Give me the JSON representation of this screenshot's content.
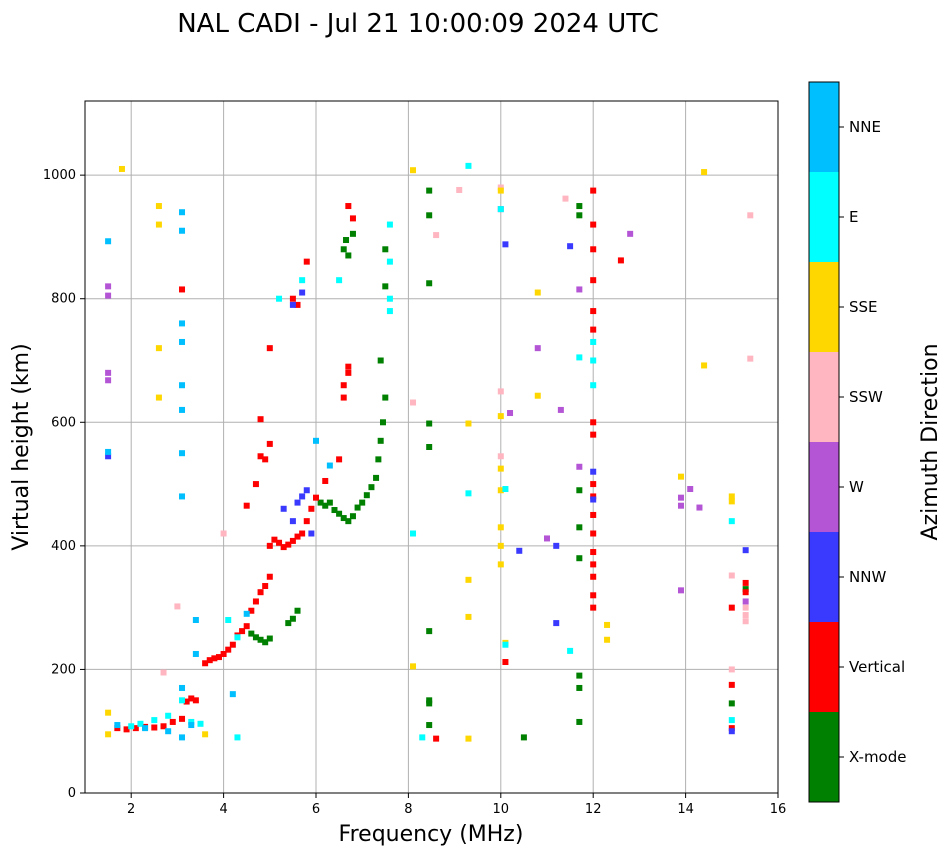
{
  "chart_data": {
    "type": "scatter",
    "title": "NAL CADI - Jul 21 10:00:09 2024 UTC",
    "xlabel": "Frequency (MHz)",
    "ylabel": "Virtual height (km)",
    "xlim": [
      1,
      16
    ],
    "ylim": [
      0,
      1120
    ],
    "xticks": [
      2,
      4,
      6,
      8,
      10,
      12,
      14,
      16
    ],
    "yticks": [
      0,
      200,
      400,
      600,
      800,
      1000
    ],
    "grid": true,
    "colorbar": {
      "title": "Azimuth Direction",
      "categories": [
        {
          "name": "X-mode",
          "color": "#008000"
        },
        {
          "name": "Vertical",
          "color": "#ff0000"
        },
        {
          "name": "NNW",
          "color": "#3a3aff"
        },
        {
          "name": "W",
          "color": "#b455d6"
        },
        {
          "name": "SSW",
          "color": "#ffb6c1"
        },
        {
          "name": "SSE",
          "color": "#ffd700"
        },
        {
          "name": "E",
          "color": "#00ffff"
        },
        {
          "name": "NNE",
          "color": "#00bfff"
        }
      ]
    },
    "series": [
      {
        "name": "X-mode",
        "points": [
          [
            4.6,
            258
          ],
          [
            4.7,
            252
          ],
          [
            4.8,
            248
          ],
          [
            4.9,
            244
          ],
          [
            5.0,
            250
          ],
          [
            5.4,
            275
          ],
          [
            5.5,
            282
          ],
          [
            5.6,
            295
          ],
          [
            6.1,
            470
          ],
          [
            6.2,
            465
          ],
          [
            6.3,
            470
          ],
          [
            6.4,
            458
          ],
          [
            6.5,
            452
          ],
          [
            6.6,
            445
          ],
          [
            6.7,
            440
          ],
          [
            6.8,
            448
          ],
          [
            6.9,
            462
          ],
          [
            7.0,
            470
          ],
          [
            7.1,
            482
          ],
          [
            7.2,
            495
          ],
          [
            7.3,
            510
          ],
          [
            7.35,
            540
          ],
          [
            7.4,
            570
          ],
          [
            7.45,
            600
          ],
          [
            7.5,
            640
          ],
          [
            7.4,
            700
          ],
          [
            7.5,
            820
          ],
          [
            7.5,
            880
          ],
          [
            6.6,
            880
          ],
          [
            6.65,
            895
          ],
          [
            6.7,
            870
          ],
          [
            6.8,
            905
          ],
          [
            8.45,
            975
          ],
          [
            8.45,
            935
          ],
          [
            8.45,
            825
          ],
          [
            8.45,
            560
          ],
          [
            8.45,
            598
          ],
          [
            8.45,
            262
          ],
          [
            8.45,
            150
          ],
          [
            8.45,
            145
          ],
          [
            8.45,
            110
          ],
          [
            10.5,
            90
          ],
          [
            11.7,
            950
          ],
          [
            11.7,
            935
          ],
          [
            11.7,
            490
          ],
          [
            11.7,
            430
          ],
          [
            11.7,
            380
          ],
          [
            11.7,
            190
          ],
          [
            11.7,
            170
          ],
          [
            11.7,
            115
          ],
          [
            15.0,
            145
          ],
          [
            15.3,
            330
          ]
        ]
      },
      {
        "name": "Vertical",
        "points": [
          [
            1.7,
            105
          ],
          [
            1.9,
            103
          ],
          [
            2.1,
            105
          ],
          [
            2.3,
            107
          ],
          [
            2.5,
            106
          ],
          [
            2.7,
            108
          ],
          [
            2.9,
            115
          ],
          [
            3.1,
            120
          ],
          [
            3.2,
            148
          ],
          [
            3.3,
            153
          ],
          [
            3.4,
            150
          ],
          [
            3.6,
            210
          ],
          [
            3.7,
            215
          ],
          [
            3.8,
            218
          ],
          [
            3.9,
            220
          ],
          [
            4.0,
            225
          ],
          [
            4.1,
            232
          ],
          [
            4.2,
            240
          ],
          [
            4.3,
            255
          ],
          [
            4.4,
            262
          ],
          [
            4.5,
            270
          ],
          [
            4.6,
            295
          ],
          [
            4.7,
            310
          ],
          [
            4.8,
            325
          ],
          [
            4.9,
            335
          ],
          [
            5.0,
            350
          ],
          [
            5.0,
            400
          ],
          [
            5.1,
            410
          ],
          [
            5.2,
            405
          ],
          [
            5.3,
            398
          ],
          [
            5.4,
            402
          ],
          [
            5.5,
            408
          ],
          [
            5.6,
            415
          ],
          [
            5.7,
            420
          ],
          [
            5.8,
            440
          ],
          [
            5.9,
            460
          ],
          [
            6.0,
            478
          ],
          [
            6.2,
            505
          ],
          [
            6.5,
            540
          ],
          [
            6.6,
            640
          ],
          [
            6.6,
            660
          ],
          [
            6.7,
            680
          ],
          [
            6.7,
            690
          ],
          [
            4.5,
            465
          ],
          [
            4.7,
            500
          ],
          [
            4.8,
            545
          ],
          [
            4.9,
            540
          ],
          [
            5.0,
            565
          ],
          [
            4.8,
            605
          ],
          [
            5.6,
            790
          ],
          [
            5.5,
            800
          ],
          [
            5.8,
            860
          ],
          [
            5.0,
            720
          ],
          [
            6.7,
            950
          ],
          [
            6.8,
            930
          ],
          [
            3.1,
            815
          ],
          [
            8.6,
            88
          ],
          [
            10.1,
            212
          ],
          [
            12.0,
            975
          ],
          [
            12.0,
            920
          ],
          [
            12.0,
            880
          ],
          [
            12.0,
            830
          ],
          [
            12.0,
            780
          ],
          [
            12.0,
            750
          ],
          [
            12.0,
            600
          ],
          [
            12.0,
            580
          ],
          [
            12.0,
            500
          ],
          [
            12.0,
            480
          ],
          [
            12.0,
            450
          ],
          [
            12.0,
            420
          ],
          [
            12.0,
            390
          ],
          [
            12.0,
            370
          ],
          [
            12.0,
            350
          ],
          [
            12.0,
            320
          ],
          [
            12.0,
            300
          ],
          [
            12.6,
            862
          ],
          [
            15.0,
            300
          ],
          [
            15.0,
            175
          ],
          [
            15.0,
            105
          ],
          [
            15.3,
            340
          ],
          [
            15.3,
            325
          ]
        ]
      },
      {
        "name": "NNW",
        "points": [
          [
            1.5,
            545
          ],
          [
            5.3,
            460
          ],
          [
            5.5,
            440
          ],
          [
            5.6,
            470
          ],
          [
            5.7,
            480
          ],
          [
            5.8,
            490
          ],
          [
            5.9,
            420
          ],
          [
            5.5,
            790
          ],
          [
            5.7,
            810
          ],
          [
            10.1,
            888
          ],
          [
            10.4,
            392
          ],
          [
            11.2,
            400
          ],
          [
            11.2,
            275
          ],
          [
            11.5,
            885
          ],
          [
            12.0,
            475
          ],
          [
            12.0,
            520
          ],
          [
            15.3,
            393
          ],
          [
            15.0,
            100
          ]
        ]
      },
      {
        "name": "W",
        "points": [
          [
            1.5,
            820
          ],
          [
            1.5,
            805
          ],
          [
            1.5,
            680
          ],
          [
            1.5,
            668
          ],
          [
            10.0,
            945
          ],
          [
            10.2,
            615
          ],
          [
            10.8,
            720
          ],
          [
            11.0,
            412
          ],
          [
            11.3,
            620
          ],
          [
            11.7,
            528
          ],
          [
            11.7,
            815
          ],
          [
            12.8,
            905
          ],
          [
            13.9,
            478
          ],
          [
            13.9,
            465
          ],
          [
            13.9,
            328
          ],
          [
            14.1,
            492
          ],
          [
            14.3,
            462
          ],
          [
            15.3,
            310
          ]
        ]
      },
      {
        "name": "SSW",
        "points": [
          [
            2.7,
            195
          ],
          [
            3.0,
            302
          ],
          [
            4.0,
            420
          ],
          [
            8.1,
            632
          ],
          [
            8.6,
            903
          ],
          [
            9.1,
            976
          ],
          [
            10.0,
            980
          ],
          [
            10.0,
            650
          ],
          [
            10.0,
            545
          ],
          [
            11.4,
            962
          ],
          [
            15.0,
            352
          ],
          [
            15.0,
            200
          ],
          [
            15.3,
            300
          ],
          [
            15.3,
            288
          ],
          [
            15.3,
            278
          ],
          [
            15.4,
            935
          ],
          [
            15.4,
            703
          ]
        ]
      },
      {
        "name": "SSE",
        "points": [
          [
            1.5,
            130
          ],
          [
            1.5,
            95
          ],
          [
            1.8,
            1010
          ],
          [
            2.6,
            950
          ],
          [
            2.6,
            920
          ],
          [
            2.6,
            720
          ],
          [
            2.6,
            640
          ],
          [
            3.6,
            95
          ],
          [
            8.1,
            205
          ],
          [
            8.1,
            1008
          ],
          [
            9.3,
            598
          ],
          [
            9.3,
            345
          ],
          [
            9.3,
            285
          ],
          [
            9.3,
            88
          ],
          [
            10.0,
            975
          ],
          [
            10.0,
            610
          ],
          [
            10.0,
            525
          ],
          [
            10.0,
            490
          ],
          [
            10.0,
            430
          ],
          [
            10.0,
            400
          ],
          [
            10.0,
            370
          ],
          [
            10.1,
            243
          ],
          [
            10.8,
            810
          ],
          [
            10.8,
            643
          ],
          [
            12.3,
            272
          ],
          [
            12.3,
            248
          ],
          [
            13.9,
            512
          ],
          [
            14.4,
            1005
          ],
          [
            14.4,
            692
          ],
          [
            15.0,
            480
          ],
          [
            15.0,
            472
          ]
        ]
      },
      {
        "name": "E",
        "points": [
          [
            2.0,
            108
          ],
          [
            2.2,
            112
          ],
          [
            2.5,
            118
          ],
          [
            2.8,
            125
          ],
          [
            3.1,
            150
          ],
          [
            3.3,
            115
          ],
          [
            3.5,
            112
          ],
          [
            4.1,
            280
          ],
          [
            4.3,
            252
          ],
          [
            4.3,
            90
          ],
          [
            5.2,
            800
          ],
          [
            5.7,
            830
          ],
          [
            6.5,
            830
          ],
          [
            7.6,
            920
          ],
          [
            7.6,
            860
          ],
          [
            7.6,
            800
          ],
          [
            7.6,
            780
          ],
          [
            8.1,
            420
          ],
          [
            8.3,
            90
          ],
          [
            9.3,
            1015
          ],
          [
            9.3,
            485
          ],
          [
            10.0,
            945
          ],
          [
            10.1,
            492
          ],
          [
            10.1,
            240
          ],
          [
            11.5,
            230
          ],
          [
            11.7,
            705
          ],
          [
            12.0,
            730
          ],
          [
            12.0,
            700
          ],
          [
            12.0,
            660
          ],
          [
            15.0,
            440
          ],
          [
            15.0,
            118
          ]
        ]
      },
      {
        "name": "NNE",
        "points": [
          [
            1.5,
            893
          ],
          [
            1.5,
            552
          ],
          [
            1.7,
            110
          ],
          [
            2.3,
            105
          ],
          [
            2.8,
            100
          ],
          [
            3.1,
            940
          ],
          [
            3.1,
            910
          ],
          [
            3.1,
            760
          ],
          [
            3.1,
            730
          ],
          [
            3.1,
            660
          ],
          [
            3.1,
            620
          ],
          [
            3.1,
            550
          ],
          [
            3.1,
            480
          ],
          [
            3.1,
            170
          ],
          [
            3.1,
            90
          ],
          [
            3.3,
            110
          ],
          [
            3.4,
            225
          ],
          [
            3.4,
            280
          ],
          [
            4.2,
            160
          ],
          [
            4.5,
            290
          ],
          [
            6.0,
            570
          ],
          [
            6.3,
            530
          ]
        ]
      }
    ]
  }
}
